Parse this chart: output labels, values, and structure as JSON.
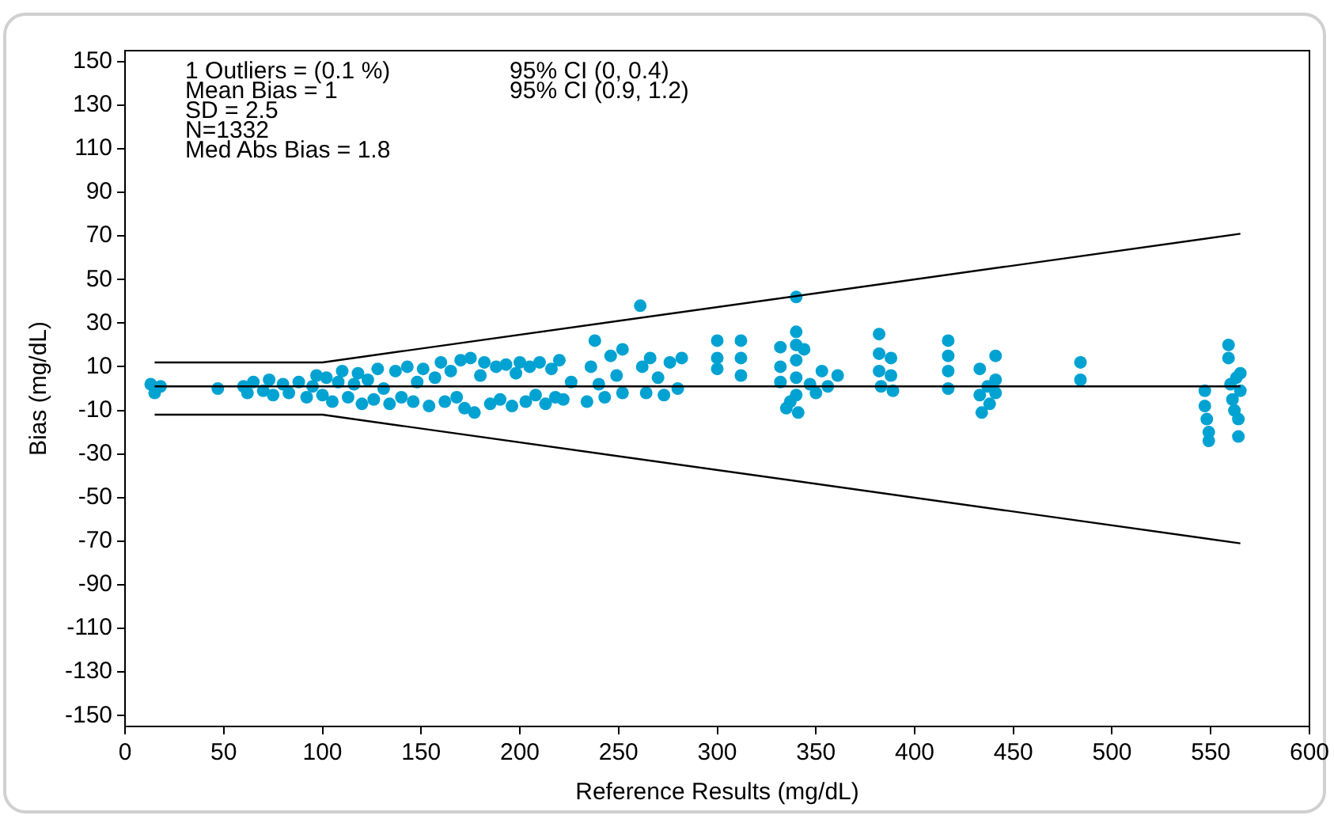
{
  "chart_data": {
    "type": "scatter",
    "xlabel": "Reference Results (mg/dL)",
    "ylabel": "Bias (mg/dL)",
    "annotations": [
      "1 Outliers = (0.1 %)",
      "Mean Bias = 1",
      "SD = 2.5",
      "N=1332",
      "Med Abs Bias = 1.8",
      "95% CI (0, 0.4)",
      "95% CI (0.9, 1.2)"
    ],
    "xlim": [
      0,
      600
    ],
    "xticks": [
      0,
      50,
      100,
      150,
      200,
      250,
      300,
      350,
      400,
      450,
      500,
      550,
      600
    ],
    "ylim": [
      -155,
      155
    ],
    "yticks": [
      -150,
      -130,
      -110,
      -90,
      -70,
      -50,
      -30,
      -10,
      10,
      30,
      50,
      70,
      90,
      110,
      130,
      150
    ],
    "grid": false,
    "legend": false,
    "series": [
      {
        "color": "#00a2d2",
        "marker": "circle",
        "x": [
          13,
          15,
          18,
          47,
          60,
          62,
          65,
          70,
          73,
          75,
          80,
          83,
          88,
          92,
          95,
          97,
          100,
          102,
          105,
          108,
          110,
          113,
          116,
          118,
          120,
          123,
          126,
          128,
          131,
          134,
          137,
          140,
          143,
          146,
          148,
          151,
          154,
          157,
          160,
          162,
          165,
          168,
          170,
          172,
          175,
          177,
          180,
          182,
          185,
          188,
          190,
          193,
          196,
          198,
          200,
          203,
          205,
          208,
          210,
          213,
          216,
          218,
          220,
          222,
          226,
          234,
          236,
          238,
          240,
          243,
          246,
          249,
          252,
          252,
          261,
          262,
          264,
          266,
          270,
          273,
          276,
          280,
          282,
          300,
          300,
          300,
          312,
          312,
          312,
          332,
          332,
          332,
          335,
          337,
          340,
          340,
          340,
          340,
          340,
          340,
          341,
          344,
          347,
          350,
          353,
          356,
          361,
          382,
          382,
          382,
          383,
          388,
          388,
          389,
          417,
          417,
          417,
          417,
          433,
          433,
          434,
          437,
          438,
          441,
          441,
          441,
          484,
          484,
          547,
          547,
          548,
          549,
          549,
          559,
          559,
          560,
          561,
          562,
          563,
          564,
          564,
          565,
          565
        ],
        "values": [
          2,
          -2,
          1,
          0,
          1,
          -2,
          3,
          -1,
          4,
          -3,
          2,
          -2,
          3,
          -4,
          1,
          6,
          -3,
          5,
          -6,
          3,
          8,
          -4,
          2,
          7,
          -7,
          4,
          -5,
          9,
          0,
          -7,
          8,
          -4,
          10,
          -6,
          3,
          9,
          -8,
          5,
          12,
          -6,
          8,
          -4,
          13,
          -9,
          14,
          -11,
          6,
          12,
          -7,
          10,
          -5,
          11,
          -8,
          7,
          12,
          -6,
          10,
          -3,
          12,
          -7,
          9,
          -4,
          13,
          -5,
          3,
          -6,
          10,
          22,
          2,
          -4,
          15,
          6,
          -2,
          18,
          38,
          10,
          -2,
          14,
          5,
          -3,
          12,
          0,
          14,
          22,
          14,
          9,
          22,
          14,
          6,
          19,
          10,
          3,
          -9,
          -6,
          42,
          26,
          20,
          13,
          5,
          -3,
          -11,
          18,
          2,
          -2,
          8,
          1,
          6,
          25,
          16,
          8,
          1,
          14,
          6,
          -1,
          22,
          15,
          8,
          0,
          9,
          -3,
          -11,
          1,
          -7,
          15,
          4,
          -2,
          12,
          4,
          -1,
          -8,
          -14,
          -20,
          -24,
          20,
          14,
          2,
          -5,
          -10,
          5,
          -14,
          -22,
          7,
          -1
        ]
      },
      {
        "type": "line",
        "marker": "none",
        "color": "#000000",
        "x": [
          15,
          565
        ],
        "values": [
          1,
          1
        ]
      },
      {
        "type": "line",
        "marker": "none",
        "color": "#000000",
        "x": [
          15,
          100,
          565
        ],
        "values": [
          12,
          12,
          71
        ]
      },
      {
        "type": "line",
        "marker": "none",
        "color": "#000000",
        "x": [
          15,
          100,
          565
        ],
        "values": [
          -12,
          -12,
          -71
        ]
      }
    ]
  }
}
